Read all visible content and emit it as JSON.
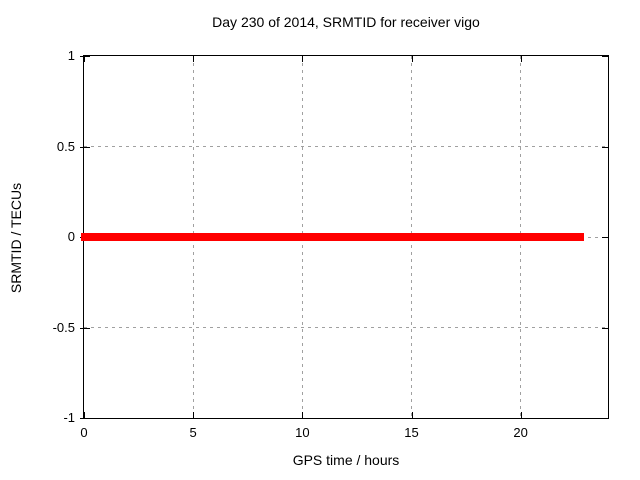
{
  "chart_data": {
    "type": "line",
    "title": "Day 230 of 2014, SRMTID for receiver vigo",
    "xlabel": "GPS time / hours",
    "ylabel": "SRMTID / TECUs",
    "xlim": [
      0,
      24
    ],
    "ylim": [
      -1,
      1
    ],
    "xticks": [
      0,
      5,
      10,
      15,
      20
    ],
    "yticks": [
      -1,
      -0.5,
      0,
      0.5,
      1
    ],
    "grid": true,
    "legend": "none",
    "colors": {
      "background": "#ffffff",
      "border": "#000000",
      "grid": "#a0a0a0",
      "text": "#000000"
    },
    "series": [
      {
        "color": "#ff0000",
        "linewidth": 8,
        "x": [
          0,
          22.85
        ],
        "y": [
          0,
          0
        ]
      }
    ]
  }
}
